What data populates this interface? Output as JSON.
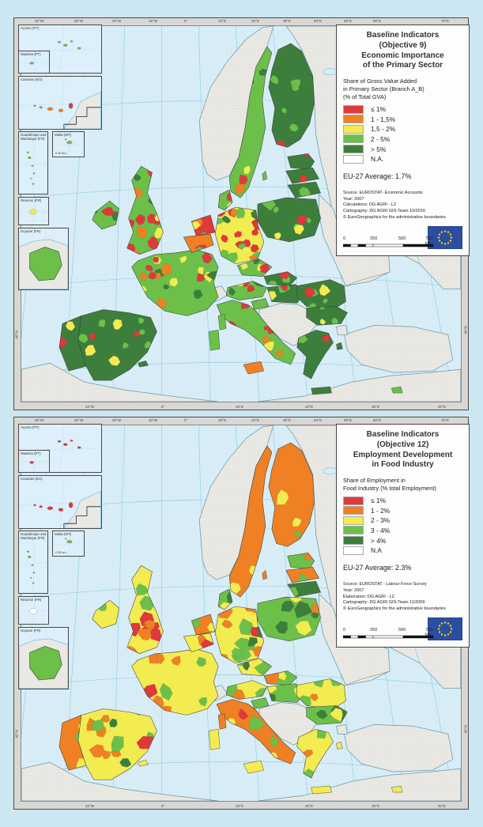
{
  "page": {
    "background": "#cde7f2"
  },
  "palette": {
    "red": "#df393b",
    "orange": "#ef8023",
    "yellow": "#f3ec51",
    "light_green": "#6cc04a",
    "dark_green": "#3d7e3c",
    "na": "#ffffff",
    "non_eu_land": "#e9e8e3",
    "sea": "#d9edf7",
    "frame": "#d8d7d3",
    "eu_flag_blue": "#2b4ea0",
    "graticule": "#79c5df"
  },
  "frame_ticks": {
    "top": [
      "40°W",
      "30°W",
      "20°W",
      "10°W",
      "0°",
      "10°E",
      "20°E",
      "30°E",
      "40°E",
      "50°E",
      "60°E",
      "70°E"
    ],
    "bottom": [
      "10°W",
      "0°",
      "10°E",
      "20°E",
      "30°E",
      "40°E"
    ],
    "left": [
      "40°N"
    ],
    "right": [
      "40°N"
    ]
  },
  "insets": [
    {
      "label": "Açores (PT)"
    },
    {
      "label": "Madeira (PT)"
    },
    {
      "label": "Canarias (ES)"
    },
    {
      "label": "Guadeloupe and Martinique (FR)"
    },
    {
      "label": "Malta (MT)",
      "scale_label": "0   30 km"
    },
    {
      "label": "Réunion (FR)"
    },
    {
      "label": "Guyane (FR)"
    }
  ],
  "panels": [
    {
      "id": "objective-9",
      "legend": {
        "title_lines": [
          "Baseline Indicators",
          "(Objective 9)",
          "Economic Importance",
          "of the Primary Sector"
        ],
        "subtitle_lines": [
          "Share of Gross Value Added",
          "in Primary Sector (Branch A_B)",
          "(% of Total GVA)"
        ],
        "classes": [
          {
            "label": "≤ 1%",
            "color": "#df393b"
          },
          {
            "label": "1 - 1,5%",
            "color": "#ef8023"
          },
          {
            "label": "1,5 - 2%",
            "color": "#f3ec51"
          },
          {
            "label": "2 - 5%",
            "color": "#6cc04a"
          },
          {
            "label": "> 5%",
            "color": "#3d7e3c"
          },
          {
            "label": "N.A.",
            "color": "#ffffff"
          }
        ],
        "average": "EU-27 Average: 1.7%",
        "source_lines": [
          "Source: EUROSTAT- Economic Accounts",
          "Year: 2007",
          "Calculations: DG AGRI - L2",
          "Cartography: DG AGRI GIS-Team 10/2010",
          "© EuroGeographics for the administrative boundaries"
        ],
        "scale_ticks": [
          "0",
          "250",
          "500",
          "750 km"
        ]
      }
    },
    {
      "id": "objective-12",
      "legend": {
        "title_lines": [
          "Baseline Indicators",
          "(Objective 12)",
          "Employment Development",
          "in Food Industry"
        ],
        "subtitle_lines": [
          "Share of Employment in",
          "Food Industry (% total Employment)"
        ],
        "classes": [
          {
            "label": "≤ 1%",
            "color": "#df393b"
          },
          {
            "label": "1 - 2%",
            "color": "#ef8023"
          },
          {
            "label": "2 - 3%",
            "color": "#f3ec51"
          },
          {
            "label": "3 - 4%",
            "color": "#6cc04a"
          },
          {
            "label": "> 4%",
            "color": "#3d7e3c"
          },
          {
            "label": "N.A",
            "color": "#ffffff"
          }
        ],
        "average": "EU-27 Average: 2.3%",
        "source_lines": [
          "Source: EUROSTAT - Labour Force Survey",
          "Year: 2007",
          "Elaboration: DG AGRI - L2",
          "Cartography: DG AGRI GIS-Team 11/2009",
          "© EuroGeographics for the administrative boundaries"
        ],
        "scale_ticks": [
          "0",
          "250",
          "500",
          "750 km"
        ]
      }
    }
  ]
}
